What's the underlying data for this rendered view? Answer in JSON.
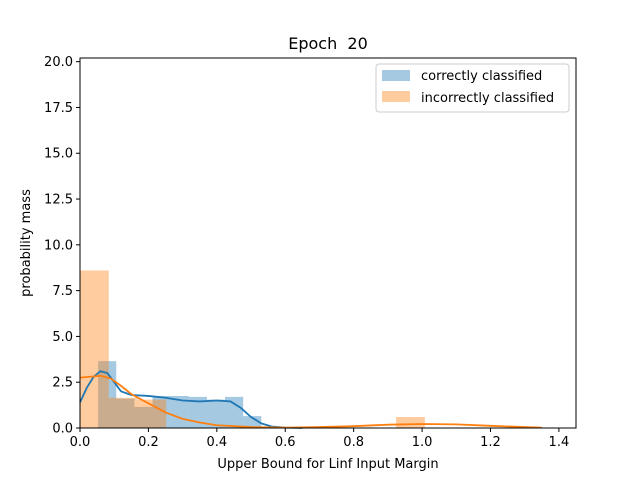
{
  "chart_data": {
    "type": "histogram-kde",
    "title": "Epoch  20",
    "xlabel": "Upper Bound for Linf Input Margin",
    "ylabel": "probability mass",
    "xlim": [
      0,
      1.45
    ],
    "ylim": [
      0,
      20.2
    ],
    "xticks": [
      0.0,
      0.2,
      0.4,
      0.6,
      0.8,
      1.0,
      1.2,
      1.4
    ],
    "xtick_labels": [
      "0.0",
      "0.2",
      "0.4",
      "0.6",
      "0.8",
      "1.0",
      "1.2",
      "1.4"
    ],
    "yticks": [
      0,
      2.5,
      5,
      7.5,
      10,
      12.5,
      15,
      17.5,
      20
    ],
    "ytick_labels": [
      "0.0",
      "2.5",
      "5.0",
      "7.5",
      "10.0",
      "12.5",
      "15.0",
      "17.5",
      "20.0"
    ],
    "grid": false,
    "legend_position": "top-right",
    "series": [
      {
        "name": "correctly classified",
        "bar_color": "#1f77b4",
        "line_color": "#1f77b4",
        "bars": [
          {
            "x0": 0.053,
            "x1": 0.106,
            "height": 3.65
          },
          {
            "x0": 0.106,
            "x1": 0.159,
            "height": 1.6
          },
          {
            "x0": 0.159,
            "x1": 0.212,
            "height": 1.15
          },
          {
            "x0": 0.212,
            "x1": 0.265,
            "height": 1.75
          },
          {
            "x0": 0.265,
            "x1": 0.318,
            "height": 1.75
          },
          {
            "x0": 0.318,
            "x1": 0.371,
            "height": 1.7
          },
          {
            "x0": 0.371,
            "x1": 0.424,
            "height": 1.55
          },
          {
            "x0": 0.424,
            "x1": 0.477,
            "height": 1.7
          },
          {
            "x0": 0.477,
            "x1": 0.53,
            "height": 0.65
          }
        ],
        "kde": [
          [
            0.0,
            1.4
          ],
          [
            0.02,
            2.2
          ],
          [
            0.04,
            2.8
          ],
          [
            0.06,
            3.1
          ],
          [
            0.08,
            3.0
          ],
          [
            0.1,
            2.5
          ],
          [
            0.12,
            2.0
          ],
          [
            0.15,
            1.8
          ],
          [
            0.2,
            1.75
          ],
          [
            0.25,
            1.65
          ],
          [
            0.3,
            1.5
          ],
          [
            0.35,
            1.45
          ],
          [
            0.4,
            1.5
          ],
          [
            0.44,
            1.45
          ],
          [
            0.47,
            1.1
          ],
          [
            0.5,
            0.6
          ],
          [
            0.53,
            0.25
          ],
          [
            0.56,
            0.08
          ],
          [
            0.6,
            0.02
          ],
          [
            0.65,
            0.0
          ]
        ]
      },
      {
        "name": "incorrectly classified",
        "bar_color": "#ff7f0e",
        "line_color": "#ff7f0e",
        "bars": [
          {
            "x0": 0.0,
            "x1": 0.084,
            "height": 8.6
          },
          {
            "x0": 0.084,
            "x1": 0.168,
            "height": 1.65
          },
          {
            "x0": 0.168,
            "x1": 0.252,
            "height": 1.55
          },
          {
            "x0": 0.924,
            "x1": 1.008,
            "height": 0.6
          }
        ],
        "kde": [
          [
            0.0,
            2.75
          ],
          [
            0.03,
            2.8
          ],
          [
            0.06,
            2.85
          ],
          [
            0.09,
            2.7
          ],
          [
            0.12,
            2.3
          ],
          [
            0.15,
            1.85
          ],
          [
            0.2,
            1.35
          ],
          [
            0.25,
            0.85
          ],
          [
            0.3,
            0.5
          ],
          [
            0.35,
            0.3
          ],
          [
            0.4,
            0.15
          ],
          [
            0.5,
            0.05
          ],
          [
            0.6,
            0.02
          ],
          [
            0.7,
            0.05
          ],
          [
            0.8,
            0.1
          ],
          [
            0.9,
            0.18
          ],
          [
            1.0,
            0.22
          ],
          [
            1.1,
            0.2
          ],
          [
            1.2,
            0.12
          ],
          [
            1.3,
            0.05
          ],
          [
            1.35,
            0.02
          ]
        ]
      }
    ]
  }
}
